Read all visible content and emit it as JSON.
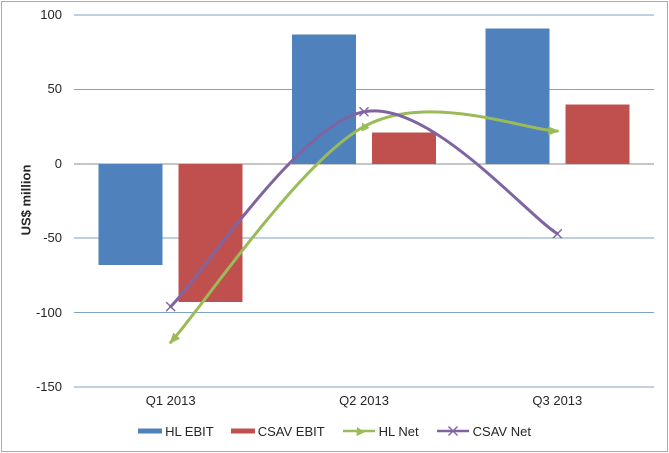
{
  "chart_data": {
    "type": "combo-bar-line",
    "title": "",
    "categories": [
      "Q1 2013",
      "Q2 2013",
      "Q3 2013"
    ],
    "series": [
      {
        "name": "HL EBIT",
        "type": "bar",
        "color": "#4f81bd",
        "values": [
          -68,
          87,
          91
        ]
      },
      {
        "name": "CSAV EBIT",
        "type": "bar",
        "color": "#c0504d",
        "values": [
          -93,
          21,
          40
        ]
      },
      {
        "name": "HL Net",
        "type": "line",
        "color": "#9bbb59",
        "marker": "triangle",
        "smooth": true,
        "arrow_ends": true,
        "values": [
          -120,
          25,
          22
        ]
      },
      {
        "name": "CSAV Net",
        "type": "line",
        "color": "#8064a2",
        "marker": "x",
        "smooth": true,
        "arrow_ends": false,
        "values": [
          -96,
          35,
          -47
        ]
      }
    ],
    "xlabel": "",
    "ylabel": "US$ million",
    "ylim": [
      -150,
      100
    ],
    "ytick_step": 50,
    "yticks": [
      "100",
      "50",
      "0",
      "-50",
      "-100",
      "-150"
    ],
    "grid": true,
    "legend_position": "bottom"
  },
  "style": {
    "gridline_color": "#7fa3c3",
    "zero_axis_color": "#8c8c8c",
    "border_color": "#ababab",
    "text_color": "#262626",
    "background": "#ffffff"
  }
}
